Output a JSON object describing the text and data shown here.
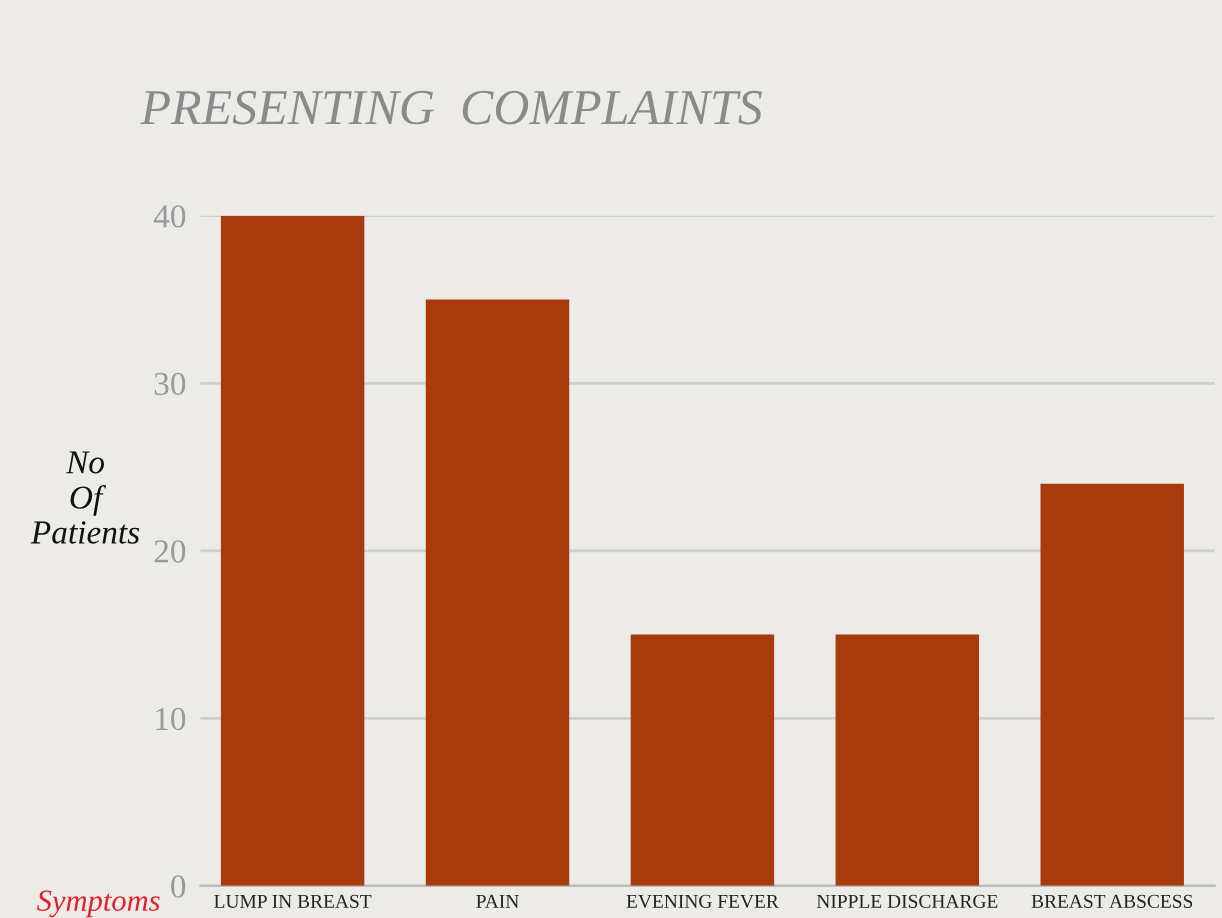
{
  "chart_data": {
    "type": "bar",
    "title": "PRESENTING  COMPLAINTS",
    "xlabel": "Symptoms",
    "ylabel": "No\nOf\nPatients",
    "categories": [
      "LUMP IN BREAST",
      "PAIN",
      "EVENING FEVER",
      "NIPPLE DISCHARGE",
      "BREAST ABSCESS"
    ],
    "values": [
      40,
      35,
      15,
      15,
      24
    ],
    "color": "#a83a0c",
    "ylim": [
      0,
      40
    ],
    "yticks": [
      0,
      10,
      20,
      30,
      40
    ],
    "grid": "y"
  }
}
